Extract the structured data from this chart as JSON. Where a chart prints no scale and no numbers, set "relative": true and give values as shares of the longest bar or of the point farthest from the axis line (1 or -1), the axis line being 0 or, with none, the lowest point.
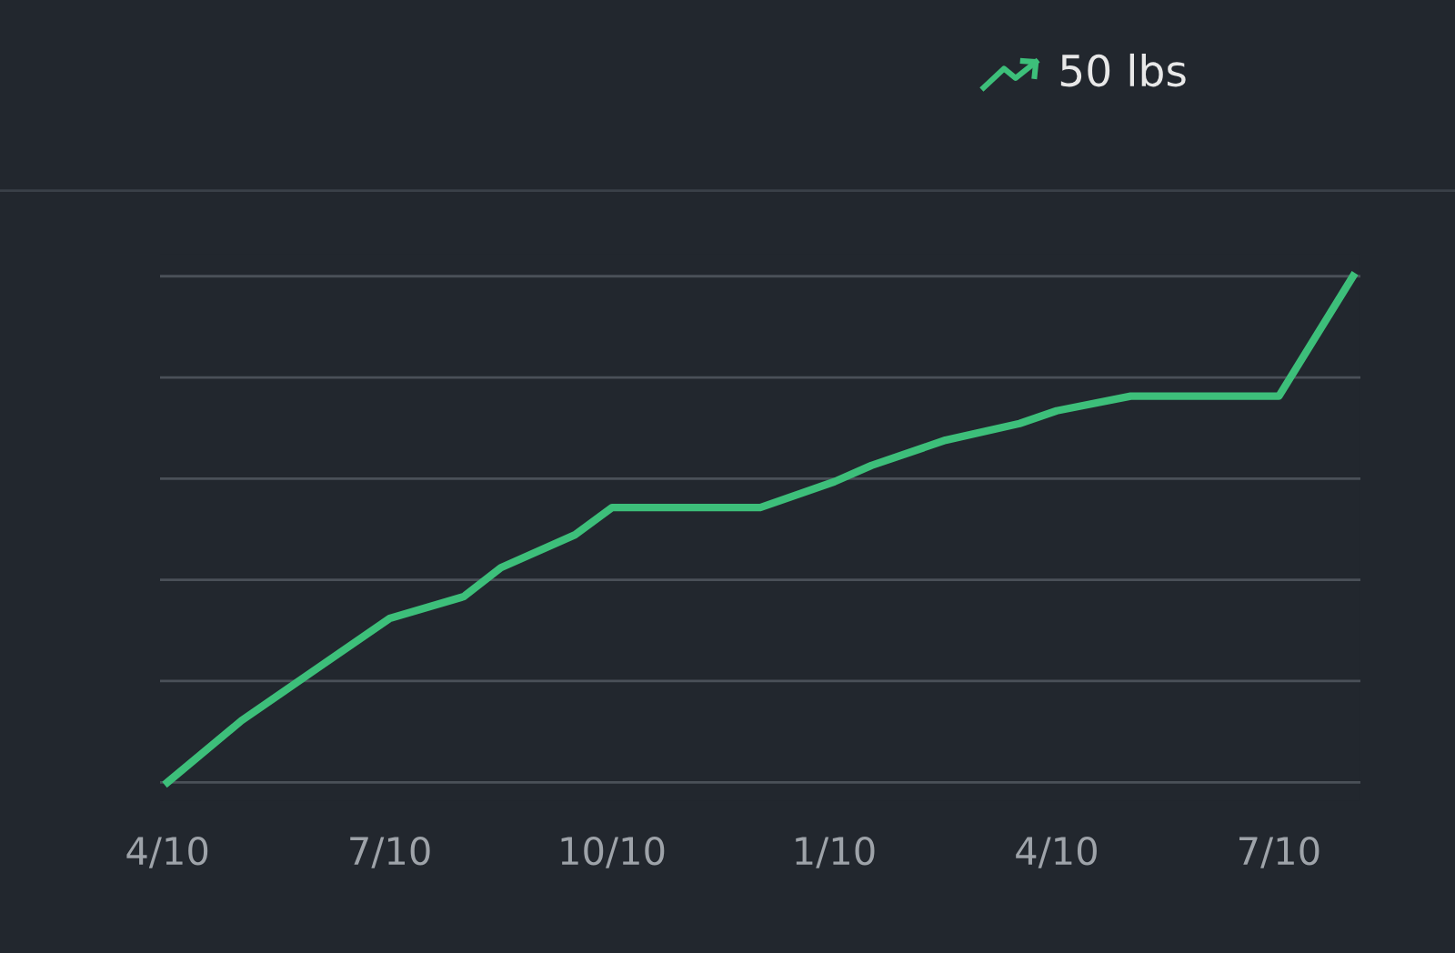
{
  "chart_data": {
    "type": "line",
    "relative": true,
    "categories": [
      "4/10",
      null,
      null,
      null,
      null,
      null,
      "7/10",
      null,
      null,
      null,
      null,
      null,
      "10/10",
      null,
      null,
      null,
      null,
      null,
      "1/10",
      null,
      null,
      null,
      null,
      null,
      "4/10",
      null,
      null,
      null,
      null,
      null,
      "7/10",
      null,
      null
    ],
    "series": [
      {
        "color": "#3dbf7a",
        "values": [
          0,
          null,
          0.122,
          null,
          0.223,
          null,
          0.324,
          null,
          0.367,
          0.424,
          null,
          0.489,
          0.543,
          null,
          null,
          null,
          0.543,
          null,
          0.594,
          0.626,
          null,
          0.676,
          null,
          0.709,
          0.734,
          null,
          0.763,
          null,
          null,
          null,
          0.763,
          null,
          1
        ]
      }
    ],
    "annotations": [
      "50 lbs"
    ],
    "grid": "y",
    "marker": "none",
    "line_style": "solid",
    "legend": false
  }
}
